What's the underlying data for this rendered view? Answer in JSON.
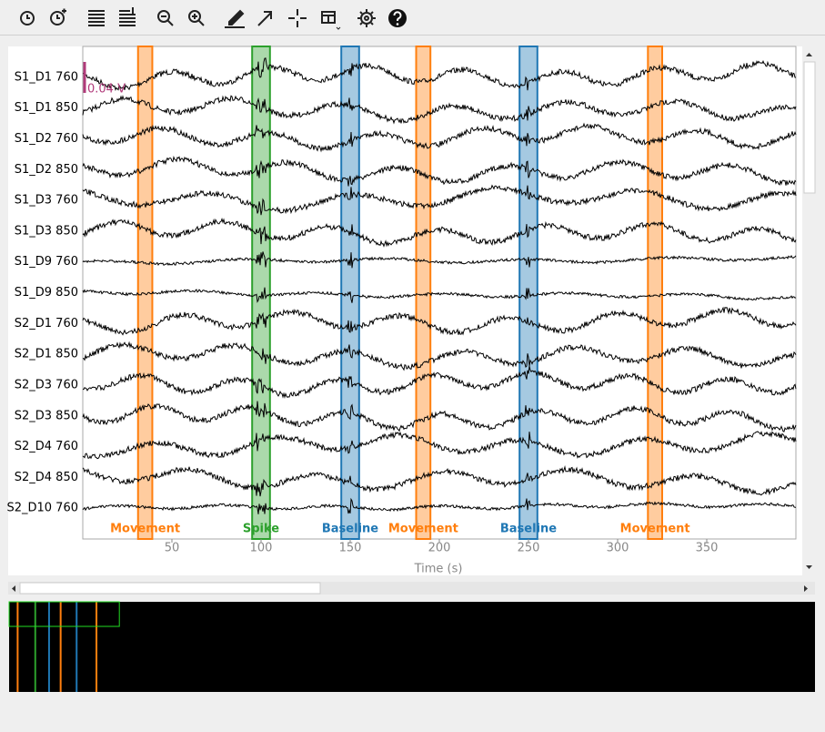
{
  "chart_data": {
    "type": "timeseries",
    "xlabel": "Time (s)",
    "xlim": [
      0,
      400
    ],
    "xticks": [
      50,
      100,
      150,
      200,
      250,
      300,
      350
    ],
    "scale_bar": "0.04 V",
    "scale_color": "#b03a7a",
    "trace_color": "#000000",
    "channels": [
      "S1_D1 760",
      "S1_D1 850",
      "S1_D2 760",
      "S1_D2 850",
      "S1_D3 760",
      "S1_D3 850",
      "S1_D9 760",
      "S1_D9 850",
      "S2_D1 760",
      "S2_D1 850",
      "S2_D3 760",
      "S2_D3 850",
      "S2_D4 760",
      "S2_D4 850",
      "S2_D10 760"
    ],
    "annotations": [
      {
        "description": "Movement",
        "onset": 31,
        "duration": 8,
        "color": "#ff7f0e"
      },
      {
        "description": "Spike",
        "onset": 95,
        "duration": 10,
        "color": "#2ca02c"
      },
      {
        "description": "Baseline",
        "onset": 145,
        "duration": 10,
        "color": "#1f77b4"
      },
      {
        "description": "Movement",
        "onset": 187,
        "duration": 8,
        "color": "#ff7f0e"
      },
      {
        "description": "Baseline",
        "onset": 245,
        "duration": 10,
        "color": "#1f77b4"
      },
      {
        "description": "Movement",
        "onset": 317,
        "duration": 8,
        "color": "#ff7f0e"
      }
    ]
  }
}
